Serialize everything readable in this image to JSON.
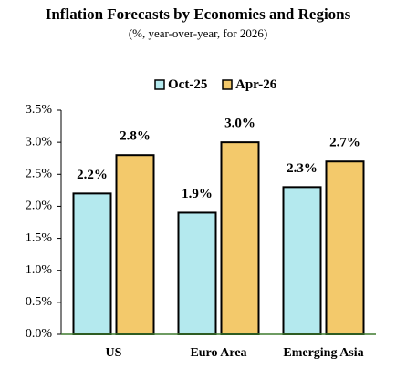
{
  "chart_data": {
    "type": "bar",
    "title": "Inflation Forecasts by Economies and Regions",
    "subtitle": "(%, year-over-year, for 2026)",
    "categories": [
      "US",
      "Euro Area",
      "Emerging Asia"
    ],
    "series": [
      {
        "name": "Oct-25",
        "color": "#b4e9ee",
        "values": [
          2.2,
          1.9,
          2.3
        ],
        "value_labels": [
          "2.2%",
          "1.9%",
          "2.3%"
        ]
      },
      {
        "name": "Apr-26",
        "color": "#f3c96b",
        "values": [
          2.8,
          3.0,
          2.7
        ],
        "value_labels": [
          "2.8%",
          "3.0%",
          "2.7%"
        ]
      }
    ],
    "ylim": [
      0,
      3.5
    ],
    "yticks": [
      {
        "value": 0,
        "label": "0.0%"
      },
      {
        "value": 0.5,
        "label": "0.5%"
      },
      {
        "value": 1,
        "label": "1.0%"
      },
      {
        "value": 1.5,
        "label": "1.5%"
      },
      {
        "value": 2,
        "label": "2.0%"
      },
      {
        "value": 2.5,
        "label": "2.5%"
      },
      {
        "value": 3,
        "label": "3.0%"
      },
      {
        "value": 3.5,
        "label": "3.5%"
      }
    ],
    "legend": "top"
  }
}
